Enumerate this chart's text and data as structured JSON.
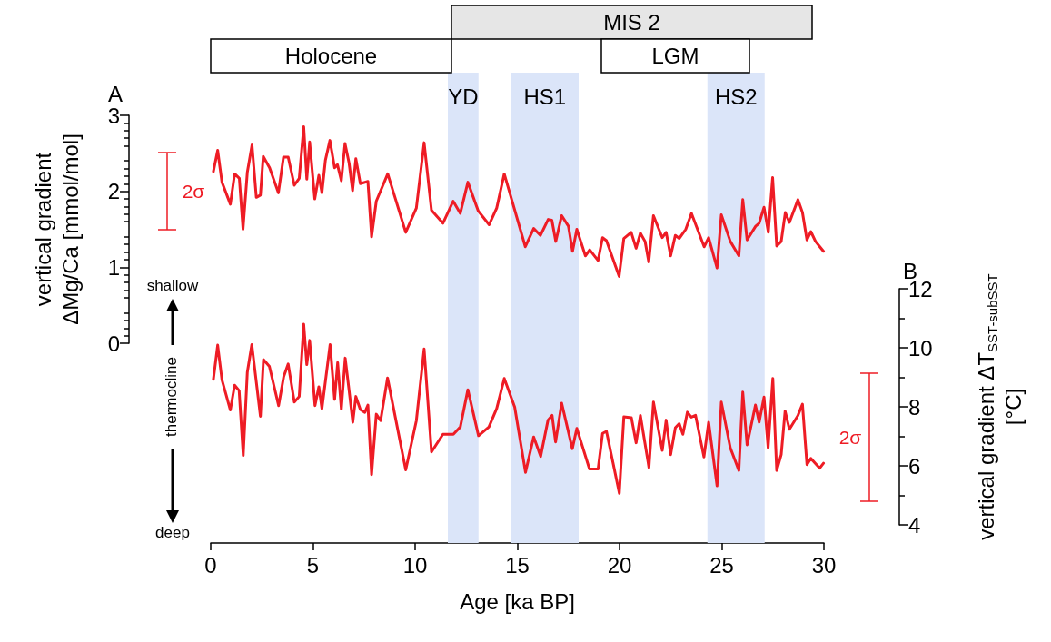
{
  "chart_data": [
    {
      "type": "other",
      "annotations": [
        "MIS 2",
        "Holocene",
        "LGM"
      ]
    },
    {
      "type": "line",
      "ylabel": "vertical gradient ΔMg/Ca [mmol/mol]",
      "xlim": [
        0,
        30
      ],
      "tick_labels": "y",
      "ylim": [
        0,
        3
      ],
      "yticks": [
        0,
        1,
        2,
        3
      ],
      "series": [
        {
          "color": "#ee1c25",
          "x": [
            0.13,
            0.34,
            0.55,
            0.96,
            1.17,
            1.4,
            1.58,
            1.79,
            2.02,
            2.23,
            2.43,
            2.57,
            2.88,
            3.31,
            3.56,
            3.79,
            4.09,
            4.33,
            4.55,
            4.7,
            4.84,
            5.09,
            5.29,
            5.44,
            5.61,
            5.83,
            6.06,
            6.2,
            6.39,
            6.57,
            6.77,
            6.94,
            7.1,
            7.32,
            7.69,
            7.87,
            8.1,
            8.66,
            9.54,
            10.06,
            10.44,
            10.8,
            11.36,
            11.86,
            12.21,
            12.58,
            13.09,
            13.62,
            13.99,
            14.36,
            15.39,
            15.8,
            16.13,
            16.51,
            16.69,
            16.88,
            17.17,
            17.5,
            17.7,
            17.91,
            18.33,
            18.54,
            18.95,
            19.17,
            19.36,
            19.98,
            20.21,
            20.57,
            20.81,
            21.02,
            21.25,
            21.43,
            21.66,
            22.09,
            22.28,
            22.5,
            22.73,
            22.92,
            23.24,
            23.52,
            24.14,
            24.36,
            24.77,
            24.98,
            25.42,
            25.84,
            26.03,
            26.24,
            26.66,
            26.83,
            27.07,
            27.28,
            27.49,
            27.69,
            27.91,
            28.11,
            28.31,
            28.73,
            28.95,
            29.17,
            29.36,
            29.59,
            29.8,
            29.98
          ],
          "values": [
            2.26,
            2.54,
            2.12,
            1.83,
            2.23,
            2.17,
            1.5,
            2.25,
            2.61,
            1.92,
            1.95,
            2.46,
            2.31,
            1.98,
            2.45,
            2.45,
            2.08,
            2.17,
            2.85,
            2.16,
            2.65,
            1.9,
            2.21,
            1.98,
            2.41,
            2.67,
            2.31,
            2.35,
            2.14,
            2.63,
            2.37,
            2.01,
            2.43,
            2.1,
            2.13,
            1.4,
            1.87,
            2.23,
            1.46,
            1.78,
            2.64,
            1.75,
            1.58,
            1.87,
            1.71,
            2.12,
            1.74,
            1.56,
            1.78,
            2.23,
            1.27,
            1.51,
            1.42,
            1.63,
            1.62,
            1.34,
            1.68,
            1.54,
            1.21,
            1.5,
            1.15,
            1.23,
            1.09,
            1.39,
            1.35,
            0.88,
            1.38,
            1.46,
            1.25,
            1.45,
            1.34,
            1.07,
            1.68,
            1.39,
            1.46,
            1.15,
            1.42,
            1.38,
            1.5,
            1.71,
            1.27,
            1.39,
            0.99,
            1.69,
            1.34,
            1.15,
            1.89,
            1.36,
            1.54,
            1.58,
            1.79,
            1.46,
            2.18,
            1.28,
            1.34,
            1.72,
            1.59,
            1.89,
            1.72,
            1.36,
            1.47,
            1.34,
            1.27,
            1.21
          ]
        }
      ],
      "annotations": [
        "A",
        "shallow",
        "thermocline",
        "deep",
        "2σ"
      ]
    },
    {
      "type": "line",
      "xlabel": "Age [ka BP]",
      "y2label": "vertical gradient ΔT$_{SST-subSST}$ [°C]",
      "xlim": [
        0,
        30
      ],
      "xticks": [
        0,
        5,
        10,
        15,
        20,
        25,
        30
      ],
      "y2lim": [
        4,
        12
      ],
      "y2ticks": [
        4,
        6,
        8,
        10,
        12
      ],
      "series": [
        {
          "color": "#ee1c25",
          "axis": "y2",
          "x": [
            0.13,
            0.34,
            0.55,
            0.96,
            1.17,
            1.39,
            1.59,
            1.79,
            2.01,
            2.43,
            2.58,
            2.87,
            3.32,
            3.57,
            3.79,
            4.09,
            4.33,
            4.55,
            4.7,
            4.84,
            5.1,
            5.29,
            5.44,
            5.84,
            6.06,
            6.21,
            6.39,
            6.58,
            6.77,
            6.95,
            7.1,
            7.32,
            7.54,
            7.69,
            7.87,
            8.1,
            8.31,
            8.65,
            9.54,
            10.06,
            10.44,
            10.8,
            11.36,
            11.87,
            12.21,
            12.58,
            13.1,
            13.61,
            13.99,
            14.36,
            14.87,
            15.4,
            15.8,
            16.14,
            16.5,
            16.7,
            16.87,
            17.17,
            17.69,
            17.91,
            18.53,
            18.95,
            19.17,
            19.36,
            19.99,
            20.21,
            20.58,
            20.81,
            21.02,
            21.44,
            21.66,
            22.09,
            22.28,
            22.5,
            22.73,
            22.92,
            23.1,
            23.32,
            23.51,
            23.72,
            24.13,
            24.36,
            24.77,
            24.98,
            25.42,
            25.84,
            26.03,
            26.24,
            26.65,
            26.83,
            27.07,
            27.27,
            27.5,
            27.69,
            27.91,
            28.1,
            28.31,
            28.73,
            28.95,
            29.17,
            29.36,
            29.79,
            29.98
          ],
          "values": [
            8.93,
            10.09,
            8.91,
            7.89,
            8.73,
            8.55,
            6.35,
            9.17,
            10.11,
            7.68,
            9.6,
            9.37,
            8.04,
            9.02,
            9.45,
            8.16,
            8.35,
            10.8,
            9.43,
            10.25,
            8.04,
            8.68,
            7.94,
            10.11,
            8.25,
            9.5,
            7.92,
            9.65,
            8.55,
            7.48,
            8.35,
            7.91,
            7.81,
            8.06,
            5.7,
            7.75,
            7.53,
            8.98,
            5.86,
            7.53,
            9.96,
            6.47,
            7.07,
            7.07,
            7.32,
            8.58,
            7.02,
            7.32,
            7.94,
            8.96,
            7.99,
            5.78,
            6.98,
            6.32,
            7.55,
            7.71,
            6.81,
            8.12,
            6.58,
            7.27,
            5.89,
            5.89,
            7.1,
            7.17,
            5.07,
            7.66,
            7.63,
            6.78,
            7.71,
            5.94,
            8.16,
            6.52,
            7.55,
            6.38,
            7.29,
            7.43,
            7.07,
            7.82,
            7.65,
            7.71,
            6.3,
            7.48,
            5.32,
            8.16,
            6.61,
            5.84,
            8.5,
            6.71,
            8.06,
            7.48,
            8.33,
            6.61,
            8.96,
            5.84,
            6.38,
            7.86,
            7.24,
            7.71,
            8.09,
            6.04,
            6.25,
            5.92,
            6.09
          ]
        }
      ],
      "bands": [
        {
          "axis": "x",
          "from": 11.6,
          "to": 13.1,
          "label": "YD",
          "color": "#dbe5f9"
        },
        {
          "axis": "x",
          "from": 14.7,
          "to": 18.0,
          "label": "HS1",
          "color": "#dbe5f9"
        },
        {
          "axis": "x",
          "from": 24.3,
          "to": 27.1,
          "label": "HS2",
          "color": "#dbe5f9"
        }
      ],
      "annotations": [
        "B",
        "2σ"
      ]
    }
  ]
}
